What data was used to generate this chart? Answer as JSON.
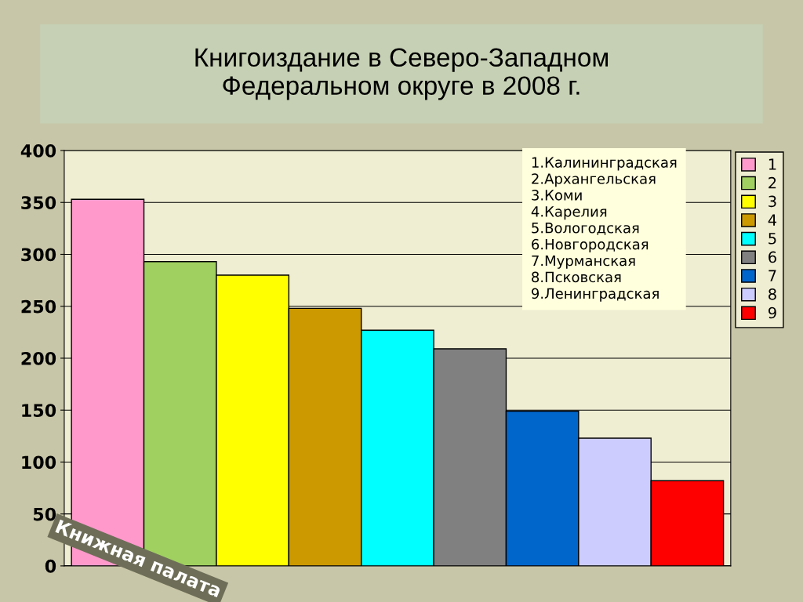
{
  "chart_data": {
    "type": "bar",
    "title": "Книгоиздание в Северо-Западном\nФедеральном округе в 2008 г.",
    "categories": [
      null,
      null,
      null,
      null,
      null,
      null,
      null,
      null,
      null
    ],
    "series": [
      {
        "name": "1",
        "color": "#ff99cc",
        "values": [
          353,
          null,
          null,
          null,
          null,
          null,
          null,
          null,
          null
        ]
      },
      {
        "name": "2",
        "color": "#a0d060",
        "values": [
          null,
          293,
          null,
          null,
          null,
          null,
          null,
          null,
          null
        ]
      },
      {
        "name": "3",
        "color": "#ffff00",
        "values": [
          null,
          null,
          280,
          null,
          null,
          null,
          null,
          null,
          null
        ]
      },
      {
        "name": "4",
        "color": "#cc9900",
        "values": [
          null,
          null,
          null,
          248,
          null,
          null,
          null,
          null,
          null
        ]
      },
      {
        "name": "5",
        "color": "#00ffff",
        "values": [
          null,
          null,
          null,
          null,
          227,
          null,
          null,
          null,
          null
        ]
      },
      {
        "name": "6",
        "color": "#808080",
        "values": [
          null,
          null,
          null,
          null,
          null,
          209,
          null,
          null,
          null
        ]
      },
      {
        "name": "7",
        "color": "#0066cc",
        "values": [
          null,
          null,
          null,
          null,
          null,
          null,
          149,
          null,
          null
        ]
      },
      {
        "name": "8",
        "color": "#ccccff",
        "values": [
          null,
          null,
          null,
          null,
          null,
          null,
          null,
          123,
          null
        ]
      },
      {
        "name": "9",
        "color": "#ff0000",
        "values": [
          null,
          null,
          null,
          null,
          null,
          null,
          null,
          null,
          82
        ]
      }
    ],
    "ylim": [
      0,
      400
    ],
    "yticks": [
      0,
      50,
      100,
      150,
      200,
      250,
      300,
      350,
      400
    ],
    "grid": "y",
    "legend": "top right",
    "annotations": [
      "1.Калининградская\n2.Архангельская\n3.Коми\n4.Карелия\n5.Вологодская\n6.Новгородская\n7.Мурманская\n8.Псковская\n9.Ленинградская",
      "Книжная палата"
    ]
  }
}
